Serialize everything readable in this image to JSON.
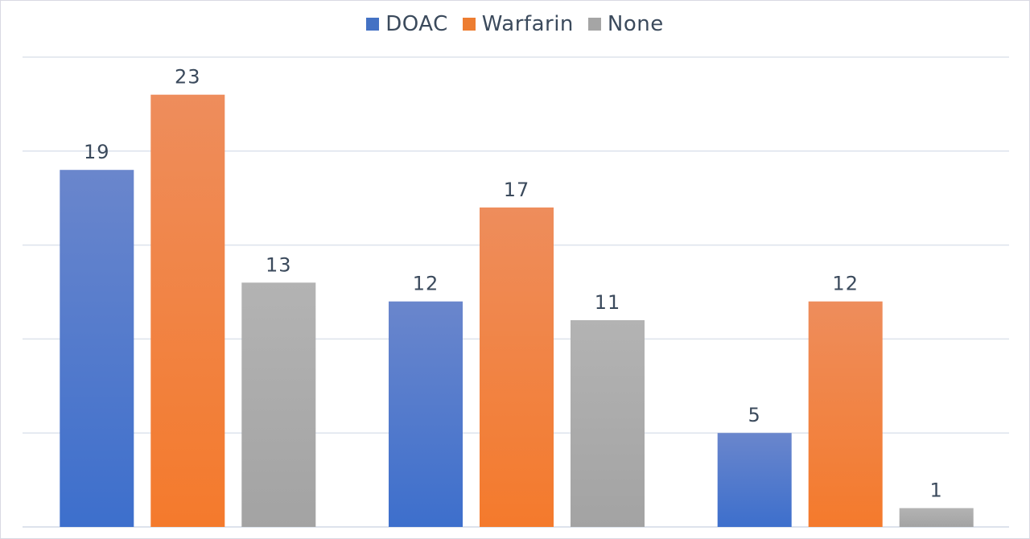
{
  "chart_data": {
    "type": "bar",
    "categories": [
      "",
      "",
      ""
    ],
    "series": [
      {
        "name": "DOAC",
        "values": [
          19,
          12,
          5
        ],
        "color_top": "#6a86cc",
        "color_bottom": "#3d6fcc"
      },
      {
        "name": "Warfarin",
        "values": [
          23,
          17,
          12
        ],
        "color_top": "#ee8d5c",
        "color_bottom": "#f47a2c"
      },
      {
        "name": "None",
        "values": [
          13,
          11,
          1
        ],
        "color_top": "#b3b3b3",
        "color_bottom": "#a3a3a3"
      }
    ],
    "title": "",
    "xlabel": "",
    "ylabel": "",
    "ylim": [
      0,
      25
    ],
    "grid": true,
    "legend_position": "top",
    "colors": {
      "DOAC": "#4472c4",
      "Warfarin": "#ed7d31",
      "None": "#a5a5a5",
      "gridline": "#dde3ec",
      "text": "#3b4a5c"
    }
  }
}
